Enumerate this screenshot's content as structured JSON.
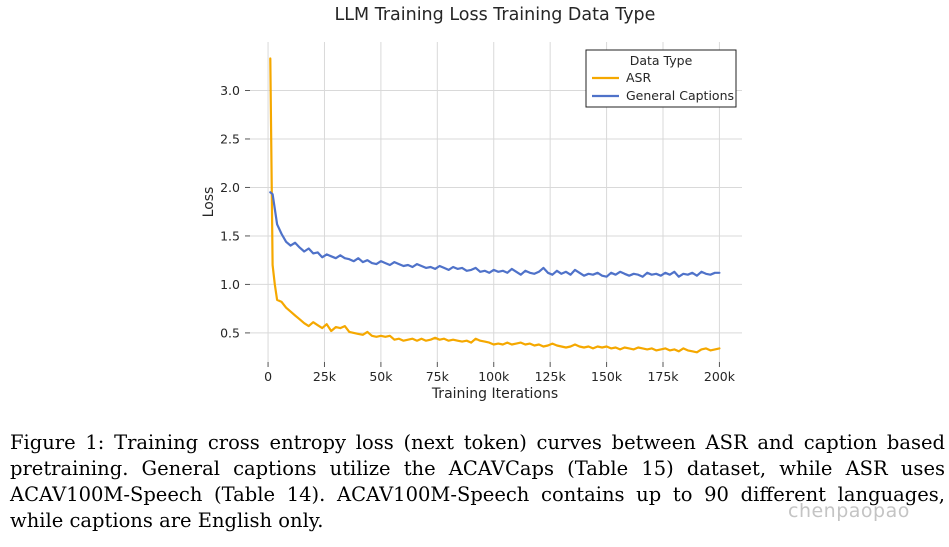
{
  "chart_data": {
    "type": "line",
    "title": "LLM Training Loss Training Data Type",
    "xlabel": "Training Iterations",
    "ylabel": "Loss",
    "xlim": [
      -8000,
      210000
    ],
    "ylim": [
      0.2,
      3.5
    ],
    "xticks": [
      0,
      25000,
      50000,
      75000,
      100000,
      125000,
      150000,
      175000,
      200000
    ],
    "xtick_labels": [
      "0",
      "25k",
      "50k",
      "75k",
      "100k",
      "125k",
      "150k",
      "175k",
      "200k"
    ],
    "yticks": [
      0.5,
      1.0,
      1.5,
      2.0,
      2.5,
      3.0
    ],
    "ytick_labels": [
      "0.5",
      "1.0",
      "1.5",
      "2.0",
      "2.5",
      "3.0"
    ],
    "grid": true,
    "legend": {
      "title": "Data Type",
      "placement": "top-right"
    },
    "series": [
      {
        "name": "ASR",
        "color": "#f5a800",
        "x": [
          1000,
          2000,
          3000,
          4000,
          6000,
          8000,
          10000,
          12000,
          14000,
          16000,
          18000,
          20000,
          22000,
          24000,
          26000,
          28000,
          30000,
          32000,
          34000,
          36000,
          38000,
          40000,
          42000,
          44000,
          46000,
          48000,
          50000,
          52000,
          54000,
          56000,
          58000,
          60000,
          62000,
          64000,
          66000,
          68000,
          70000,
          72000,
          74000,
          76000,
          78000,
          80000,
          82000,
          84000,
          86000,
          88000,
          90000,
          92000,
          94000,
          96000,
          98000,
          100000,
          102000,
          104000,
          106000,
          108000,
          110000,
          112000,
          114000,
          116000,
          118000,
          120000,
          122000,
          124000,
          126000,
          128000,
          130000,
          132000,
          134000,
          136000,
          138000,
          140000,
          142000,
          144000,
          146000,
          148000,
          150000,
          152000,
          154000,
          156000,
          158000,
          160000,
          162000,
          164000,
          166000,
          168000,
          170000,
          172000,
          174000,
          176000,
          178000,
          180000,
          182000,
          184000,
          186000,
          188000,
          190000,
          192000,
          194000,
          196000,
          198000,
          200000
        ],
        "y": [
          3.33,
          1.2,
          1.0,
          0.84,
          0.82,
          0.76,
          0.72,
          0.68,
          0.64,
          0.6,
          0.57,
          0.61,
          0.58,
          0.55,
          0.59,
          0.52,
          0.56,
          0.55,
          0.57,
          0.51,
          0.5,
          0.49,
          0.48,
          0.51,
          0.47,
          0.46,
          0.47,
          0.46,
          0.47,
          0.43,
          0.44,
          0.42,
          0.43,
          0.44,
          0.42,
          0.44,
          0.42,
          0.43,
          0.45,
          0.43,
          0.44,
          0.42,
          0.43,
          0.42,
          0.41,
          0.42,
          0.4,
          0.44,
          0.42,
          0.41,
          0.4,
          0.38,
          0.39,
          0.38,
          0.4,
          0.38,
          0.39,
          0.4,
          0.38,
          0.39,
          0.37,
          0.38,
          0.36,
          0.37,
          0.39,
          0.37,
          0.36,
          0.35,
          0.36,
          0.38,
          0.36,
          0.35,
          0.36,
          0.34,
          0.36,
          0.35,
          0.36,
          0.34,
          0.35,
          0.33,
          0.35,
          0.34,
          0.33,
          0.35,
          0.34,
          0.33,
          0.34,
          0.32,
          0.33,
          0.34,
          0.32,
          0.33,
          0.31,
          0.34,
          0.32,
          0.31,
          0.3,
          0.33,
          0.34,
          0.32,
          0.33,
          0.34
        ]
      },
      {
        "name": "General Captions",
        "color": "#4f72c9",
        "x": [
          1000,
          2000,
          3000,
          4000,
          6000,
          8000,
          10000,
          12000,
          14000,
          16000,
          18000,
          20000,
          22000,
          24000,
          26000,
          28000,
          30000,
          32000,
          34000,
          36000,
          38000,
          40000,
          42000,
          44000,
          46000,
          48000,
          50000,
          52000,
          54000,
          56000,
          58000,
          60000,
          62000,
          64000,
          66000,
          68000,
          70000,
          72000,
          74000,
          76000,
          78000,
          80000,
          82000,
          84000,
          86000,
          88000,
          90000,
          92000,
          94000,
          96000,
          98000,
          100000,
          102000,
          104000,
          106000,
          108000,
          110000,
          112000,
          114000,
          116000,
          118000,
          120000,
          122000,
          124000,
          126000,
          128000,
          130000,
          132000,
          134000,
          136000,
          138000,
          140000,
          142000,
          144000,
          146000,
          148000,
          150000,
          152000,
          154000,
          156000,
          158000,
          160000,
          162000,
          164000,
          166000,
          168000,
          170000,
          172000,
          174000,
          176000,
          178000,
          180000,
          182000,
          184000,
          186000,
          188000,
          190000,
          192000,
          194000,
          196000,
          198000,
          200000
        ],
        "y": [
          1.95,
          1.93,
          1.78,
          1.62,
          1.52,
          1.44,
          1.4,
          1.43,
          1.38,
          1.34,
          1.37,
          1.32,
          1.33,
          1.28,
          1.31,
          1.29,
          1.27,
          1.3,
          1.27,
          1.26,
          1.24,
          1.27,
          1.23,
          1.25,
          1.22,
          1.21,
          1.24,
          1.22,
          1.2,
          1.23,
          1.21,
          1.19,
          1.2,
          1.18,
          1.21,
          1.19,
          1.17,
          1.18,
          1.16,
          1.19,
          1.17,
          1.15,
          1.18,
          1.16,
          1.17,
          1.14,
          1.15,
          1.17,
          1.13,
          1.14,
          1.12,
          1.15,
          1.13,
          1.14,
          1.12,
          1.16,
          1.13,
          1.1,
          1.14,
          1.12,
          1.11,
          1.13,
          1.17,
          1.12,
          1.1,
          1.14,
          1.11,
          1.13,
          1.1,
          1.15,
          1.12,
          1.09,
          1.11,
          1.1,
          1.12,
          1.09,
          1.08,
          1.12,
          1.1,
          1.13,
          1.11,
          1.09,
          1.11,
          1.1,
          1.08,
          1.12,
          1.1,
          1.11,
          1.09,
          1.12,
          1.1,
          1.13,
          1.08,
          1.11,
          1.1,
          1.12,
          1.09,
          1.13,
          1.11,
          1.1,
          1.12,
          1.12
        ]
      }
    ]
  },
  "caption": "Figure 1: Training cross entropy loss (next token) curves between ASR and caption based pretraining. General captions utilize the ACAVCaps (Table 15) dataset, while ASR uses ACAV100M-Speech (Table 14). ACAV100M-Speech contains up to 90 different languages, while captions are English only.",
  "watermark": "chenpaopao"
}
